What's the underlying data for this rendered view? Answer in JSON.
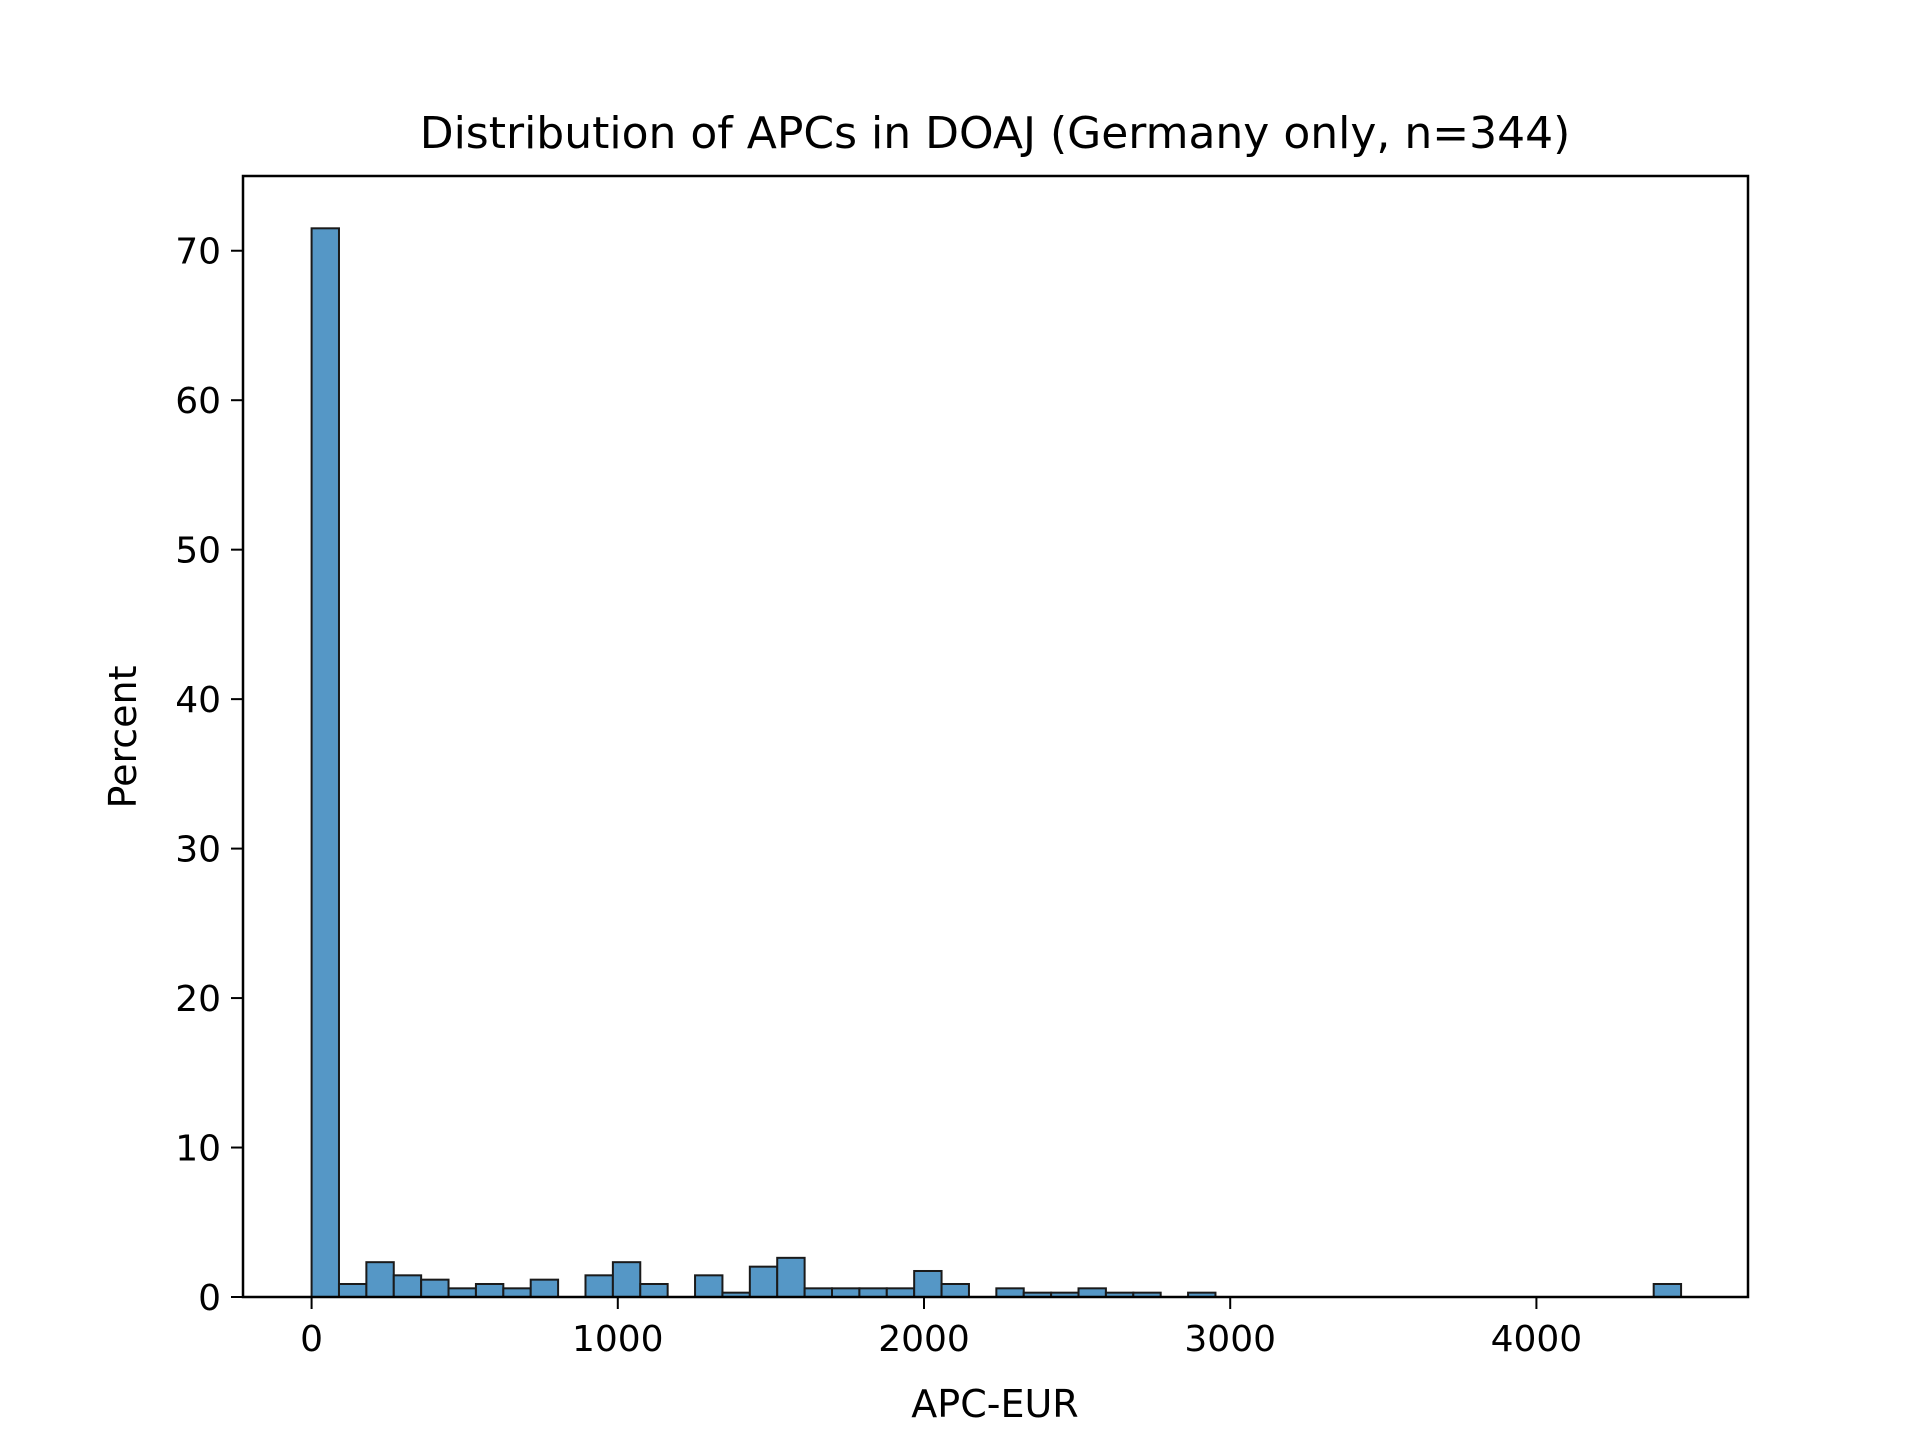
{
  "chart_data": {
    "type": "bar",
    "title": "Distribution of APCs in DOAJ (Germany only, n=344)",
    "xlabel": "APC-EUR",
    "ylabel": "Percent",
    "xlim": [
      -224,
      4691
    ],
    "ylim": [
      0,
      75
    ],
    "xticks": [
      0,
      1000,
      2000,
      3000,
      4000
    ],
    "yticks": [
      0,
      10,
      20,
      30,
      40,
      50,
      60,
      70
    ],
    "bin_width": 89.45,
    "bins": [
      {
        "x0": 0.0,
        "x1": 89.45,
        "value": 71.5
      },
      {
        "x0": 89.45,
        "x1": 178.9,
        "value": 0.87
      },
      {
        "x0": 178.9,
        "x1": 268.35,
        "value": 2.33
      },
      {
        "x0": 268.35,
        "x1": 357.8,
        "value": 1.45
      },
      {
        "x0": 357.8,
        "x1": 447.25,
        "value": 1.16
      },
      {
        "x0": 447.25,
        "x1": 536.7,
        "value": 0.58
      },
      {
        "x0": 536.7,
        "x1": 626.15,
        "value": 0.87
      },
      {
        "x0": 626.15,
        "x1": 715.6,
        "value": 0.58
      },
      {
        "x0": 715.6,
        "x1": 805.05,
        "value": 1.16
      },
      {
        "x0": 805.05,
        "x1": 894.5,
        "value": 0.0
      },
      {
        "x0": 894.5,
        "x1": 983.95,
        "value": 1.45
      },
      {
        "x0": 983.95,
        "x1": 1073.4,
        "value": 2.33
      },
      {
        "x0": 1073.4,
        "x1": 1162.85,
        "value": 0.87
      },
      {
        "x0": 1162.85,
        "x1": 1252.3,
        "value": 0.0
      },
      {
        "x0": 1252.3,
        "x1": 1341.75,
        "value": 1.45
      },
      {
        "x0": 1341.75,
        "x1": 1431.2,
        "value": 0.29
      },
      {
        "x0": 1431.2,
        "x1": 1520.65,
        "value": 2.03
      },
      {
        "x0": 1520.65,
        "x1": 1610.1,
        "value": 2.62
      },
      {
        "x0": 1610.1,
        "x1": 1699.55,
        "value": 0.58
      },
      {
        "x0": 1699.55,
        "x1": 1789.0,
        "value": 0.58
      },
      {
        "x0": 1789.0,
        "x1": 1878.45,
        "value": 0.58
      },
      {
        "x0": 1878.45,
        "x1": 1967.9,
        "value": 0.58
      },
      {
        "x0": 1967.9,
        "x1": 2057.35,
        "value": 1.74
      },
      {
        "x0": 2057.35,
        "x1": 2146.8,
        "value": 0.87
      },
      {
        "x0": 2146.8,
        "x1": 2236.25,
        "value": 0.0
      },
      {
        "x0": 2236.25,
        "x1": 2325.7,
        "value": 0.58
      },
      {
        "x0": 2325.7,
        "x1": 2415.15,
        "value": 0.29
      },
      {
        "x0": 2415.15,
        "x1": 2504.6,
        "value": 0.29
      },
      {
        "x0": 2504.6,
        "x1": 2594.05,
        "value": 0.58
      },
      {
        "x0": 2594.05,
        "x1": 2683.5,
        "value": 0.29
      },
      {
        "x0": 2683.5,
        "x1": 2772.95,
        "value": 0.29
      },
      {
        "x0": 2772.95,
        "x1": 2862.4,
        "value": 0.0
      },
      {
        "x0": 2862.4,
        "x1": 2951.85,
        "value": 0.29
      },
      {
        "x0": 4383.0,
        "x1": 4472.45,
        "value": 0.87
      }
    ],
    "bar_color": "#5597c6",
    "bar_edge_color": "#1a1a1a",
    "grid": false,
    "legend": "none"
  }
}
